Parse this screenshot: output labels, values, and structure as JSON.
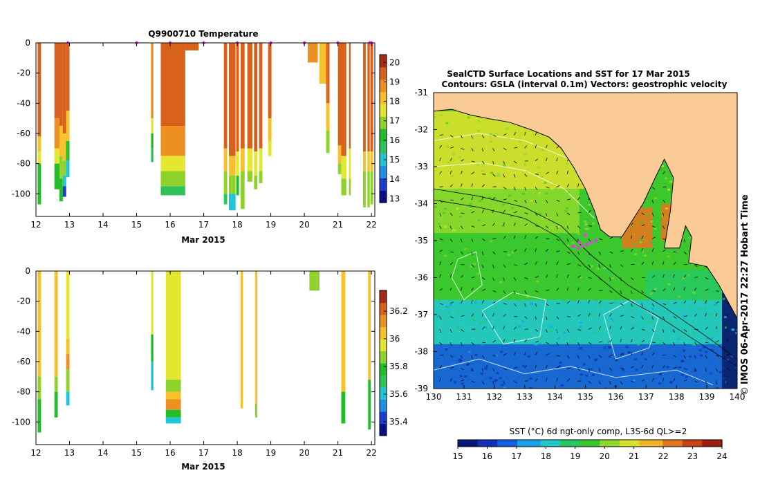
{
  "colors": {
    "land": "#fbcb96",
    "cbar_temp": [
      "#0a0f8a",
      "#1d3fd0",
      "#1f8fe6",
      "#22c4d6",
      "#2fc45a",
      "#22bd2a",
      "#8fd22c",
      "#e3e82e",
      "#f6c12a",
      "#ee8f22",
      "#d8621c",
      "#a62a14"
    ],
    "cbar_sal": [
      "#0a0f8a",
      "#1d3fd0",
      "#1f8fe6",
      "#22c4d6",
      "#2fc45a",
      "#22bd2a",
      "#8fd22c",
      "#e3e82e",
      "#f6c12a",
      "#ee8f22",
      "#d8621c",
      "#a62a14"
    ],
    "cbar_sst": [
      "#071878",
      "#1030b8",
      "#1560e0",
      "#1aa0e8",
      "#22c8c8",
      "#28c860",
      "#3cc82c",
      "#8cd82c",
      "#d8e02c",
      "#f0b42a",
      "#e07820",
      "#c84418",
      "#9a1e10"
    ],
    "marker": "#e040e0"
  },
  "chart_data": [
    {
      "name": "temperature_profiles",
      "type": "heatmap",
      "title": "Q9900710  Temperature",
      "xlabel": "Mar 2015",
      "xlim": [
        12,
        22.1
      ],
      "ylim": [
        -115,
        0
      ],
      "xticks": [
        "12",
        "13",
        "14",
        "15",
        "16",
        "17",
        "18",
        "19",
        "20",
        "21",
        "22"
      ],
      "yticks": [
        "0",
        "-20",
        "-40",
        "-60",
        "-80",
        "-100"
      ],
      "colorbar": {
        "min": 12.8,
        "max": 20.4,
        "ticks": [
          "13",
          "14",
          "15",
          "16",
          "17",
          "18",
          "19",
          "20"
        ]
      },
      "markers": [
        12.95,
        15.0,
        16.0,
        17.0,
        18.0,
        19.0,
        20.0,
        21.0,
        21.95,
        22.0
      ],
      "profiles": [
        {
          "x0": 12.05,
          "x1": 12.15,
          "max_depth": -107,
          "layers": [
            {
              "to": -62,
              "v": 19.6
            },
            {
              "to": -72,
              "v": 18.2
            },
            {
              "to": -80,
              "v": 17.4
            },
            {
              "to": -107,
              "v": 16.3
            }
          ]
        },
        {
          "x0": 12.55,
          "x1": 12.7,
          "max_depth": -97,
          "layers": [
            {
              "to": -50,
              "v": 19.4
            },
            {
              "to": -70,
              "v": 18.6
            },
            {
              "to": -80,
              "v": 17.8
            },
            {
              "to": -97,
              "v": 16.4
            }
          ]
        },
        {
          "x0": 12.7,
          "x1": 12.8,
          "max_depth": -105,
          "layers": [
            {
              "to": -55,
              "v": 19.3
            },
            {
              "to": -75,
              "v": 18.4
            },
            {
              "to": -90,
              "v": 17.2
            },
            {
              "to": -105,
              "v": 16.2
            }
          ]
        },
        {
          "x0": 12.8,
          "x1": 12.9,
          "max_depth": -102,
          "layers": [
            {
              "to": -60,
              "v": 19.2
            },
            {
              "to": -78,
              "v": 18.2
            },
            {
              "to": -88,
              "v": 16.8
            },
            {
              "to": -95,
              "v": 15.2
            },
            {
              "to": -102,
              "v": 14.0
            }
          ]
        },
        {
          "x0": 12.9,
          "x1": 13.0,
          "max_depth": -89,
          "layers": [
            {
              "to": -45,
              "v": 19.3
            },
            {
              "to": -65,
              "v": 18.3
            },
            {
              "to": -78,
              "v": 16.4
            },
            {
              "to": -89,
              "v": 14.8
            }
          ]
        },
        {
          "x0": 15.43,
          "x1": 15.5,
          "max_depth": -79,
          "layers": [
            {
              "to": -50,
              "v": 18.8
            },
            {
              "to": -60,
              "v": 17.6
            },
            {
              "to": -70,
              "v": 16.0
            },
            {
              "to": -79,
              "v": 15.4
            }
          ]
        },
        {
          "x0": 15.72,
          "x1": 16.45,
          "max_depth": -101,
          "layers": [
            {
              "to": -55,
              "v": 19.4
            },
            {
              "to": -75,
              "v": 18.6
            },
            {
              "to": -85,
              "v": 17.6
            },
            {
              "to": -95,
              "v": 16.8
            },
            {
              "to": -101,
              "v": 15.4
            }
          ]
        },
        {
          "x0": 16.45,
          "x1": 16.85,
          "max_depth": -5,
          "layers": [
            {
              "to": -5,
              "v": 19.4
            }
          ]
        },
        {
          "x0": 17.6,
          "x1": 17.7,
          "max_depth": -107,
          "layers": [
            {
              "to": -70,
              "v": 19.3
            },
            {
              "to": -85,
              "v": 18.0
            },
            {
              "to": -100,
              "v": 16.6
            },
            {
              "to": -107,
              "v": 15.4
            }
          ]
        },
        {
          "x0": 17.75,
          "x1": 17.95,
          "max_depth": -111,
          "layers": [
            {
              "to": -75,
              "v": 19.2
            },
            {
              "to": -88,
              "v": 17.9
            },
            {
              "to": -100,
              "v": 16.6
            },
            {
              "to": -111,
              "v": 15.2
            }
          ]
        },
        {
          "x0": 17.97,
          "x1": 18.05,
          "max_depth": -101,
          "layers": [
            {
              "to": -72,
              "v": 19.2
            },
            {
              "to": -88,
              "v": 17.8
            },
            {
              "to": -101,
              "v": 16.4
            }
          ]
        },
        {
          "x0": 18.1,
          "x1": 18.22,
          "max_depth": -110,
          "layers": [
            {
              "to": -70,
              "v": 19.3
            },
            {
              "to": -85,
              "v": 18.2
            },
            {
              "to": -110,
              "v": 16.8
            }
          ]
        },
        {
          "x0": 18.3,
          "x1": 18.45,
          "max_depth": -92,
          "layers": [
            {
              "to": -70,
              "v": 19.2
            },
            {
              "to": -85,
              "v": 17.6
            },
            {
              "to": -92,
              "v": 16.6
            }
          ]
        },
        {
          "x0": 18.5,
          "x1": 18.6,
          "max_depth": -97,
          "layers": [
            {
              "to": -72,
              "v": 19.2
            },
            {
              "to": -88,
              "v": 17.8
            },
            {
              "to": -97,
              "v": 16.6
            }
          ]
        },
        {
          "x0": 18.65,
          "x1": 18.75,
          "max_depth": -93,
          "layers": [
            {
              "to": -70,
              "v": 19.2
            },
            {
              "to": -85,
              "v": 17.8
            },
            {
              "to": -93,
              "v": 16.8
            }
          ]
        },
        {
          "x0": 18.92,
          "x1": 19.02,
          "max_depth": -75,
          "layers": [
            {
              "to": -50,
              "v": 19.4
            },
            {
              "to": -65,
              "v": 18.4
            },
            {
              "to": -75,
              "v": 17.6
            }
          ]
        },
        {
          "x0": 20.1,
          "x1": 20.4,
          "max_depth": -13,
          "layers": [
            {
              "to": -13,
              "v": 18.9
            }
          ]
        },
        {
          "x0": 20.45,
          "x1": 20.65,
          "max_depth": -27,
          "layers": [
            {
              "to": -27,
              "v": 18.3
            }
          ]
        },
        {
          "x0": 20.65,
          "x1": 20.75,
          "max_depth": -73,
          "layers": [
            {
              "to": -40,
              "v": 19.2
            },
            {
              "to": -58,
              "v": 18.3
            },
            {
              "to": -73,
              "v": 16.8
            }
          ]
        },
        {
          "x0": 21.0,
          "x1": 21.1,
          "max_depth": -87,
          "layers": [
            {
              "to": -68,
              "v": 19.3
            },
            {
              "to": -80,
              "v": 18.2
            },
            {
              "to": -87,
              "v": 16.8
            }
          ]
        },
        {
          "x0": 21.1,
          "x1": 21.25,
          "max_depth": -101,
          "layers": [
            {
              "to": -75,
              "v": 19.3
            },
            {
              "to": -90,
              "v": 17.8
            },
            {
              "to": -101,
              "v": 16.6
            }
          ]
        },
        {
          "x0": 21.33,
          "x1": 21.38,
          "max_depth": -101,
          "layers": [
            {
              "to": -70,
              "v": 19.3
            },
            {
              "to": -90,
              "v": 17.8
            },
            {
              "to": -101,
              "v": 16.6
            }
          ]
        },
        {
          "x0": 21.75,
          "x1": 21.83,
          "max_depth": -109,
          "layers": [
            {
              "to": -72,
              "v": 19.4
            },
            {
              "to": -85,
              "v": 17.9
            },
            {
              "to": -109,
              "v": 16.6
            }
          ]
        },
        {
          "x0": 21.88,
          "x1": 21.95,
          "max_depth": -109,
          "layers": [
            {
              "to": -72,
              "v": 19.4
            },
            {
              "to": -85,
              "v": 17.9
            },
            {
              "to": -109,
              "v": 16.6
            }
          ]
        },
        {
          "x0": 21.97,
          "x1": 22.05,
          "max_depth": -107,
          "layers": [
            {
              "to": -72,
              "v": 19.4
            },
            {
              "to": -85,
              "v": 17.9
            },
            {
              "to": -107,
              "v": 16.6
            }
          ]
        }
      ]
    },
    {
      "name": "salinity_profiles",
      "type": "heatmap",
      "title": "",
      "xlabel": "Mar 2015",
      "xlim": [
        12,
        22.1
      ],
      "ylim": [
        -115,
        0
      ],
      "xticks": [
        "12",
        "13",
        "14",
        "15",
        "16",
        "17",
        "18",
        "19",
        "20",
        "21",
        "22"
      ],
      "yticks": [
        "0",
        "-20",
        "-40",
        "-60",
        "-80",
        "-100"
      ],
      "colorbar": {
        "min": 35.3,
        "max": 36.35,
        "ticks": [
          "35.4",
          "35.6",
          "35.8",
          "36",
          "36.2"
        ]
      },
      "profiles": [
        {
          "x0": 12.05,
          "x1": 12.15,
          "max_depth": -107,
          "layers": [
            {
              "to": -70,
              "v": 36.05
            },
            {
              "to": -85,
              "v": 35.85
            },
            {
              "to": -107,
              "v": 35.8
            }
          ]
        },
        {
          "x0": 12.55,
          "x1": 12.65,
          "max_depth": -97,
          "layers": [
            {
              "to": -70,
              "v": 36.05
            },
            {
              "to": -80,
              "v": 35.85
            },
            {
              "to": -97,
              "v": 35.8
            }
          ]
        },
        {
          "x0": 12.9,
          "x1": 13.0,
          "max_depth": -89,
          "layers": [
            {
              "to": -45,
              "v": 35.98
            },
            {
              "to": -55,
              "v": 36.05
            },
            {
              "to": -65,
              "v": 36.15
            },
            {
              "to": -80,
              "v": 35.85
            },
            {
              "to": -89,
              "v": 35.6
            }
          ]
        },
        {
          "x0": 15.43,
          "x1": 15.5,
          "max_depth": -79,
          "layers": [
            {
              "to": -42,
              "v": 35.98
            },
            {
              "to": -60,
              "v": 35.8
            },
            {
              "to": -79,
              "v": 35.6
            }
          ]
        },
        {
          "x0": 15.87,
          "x1": 16.32,
          "max_depth": -101,
          "layers": [
            {
              "to": -72,
              "v": 35.97
            },
            {
              "to": -80,
              "v": 35.88
            },
            {
              "to": -85,
              "v": 36.0
            },
            {
              "to": -92,
              "v": 36.1
            },
            {
              "to": -97,
              "v": 35.8
            },
            {
              "to": -101,
              "v": 35.6
            }
          ]
        },
        {
          "x0": 18.1,
          "x1": 18.17,
          "max_depth": -91,
          "layers": [
            {
              "to": -91,
              "v": 36.05
            }
          ]
        },
        {
          "x0": 18.53,
          "x1": 18.6,
          "max_depth": -97,
          "layers": [
            {
              "to": -88,
              "v": 36.0
            },
            {
              "to": -97,
              "v": 35.85
            }
          ]
        },
        {
          "x0": 20.15,
          "x1": 20.45,
          "max_depth": -13,
          "layers": [
            {
              "to": -13,
              "v": 35.85
            }
          ]
        },
        {
          "x0": 21.1,
          "x1": 21.22,
          "max_depth": -101,
          "layers": [
            {
              "to": -80,
              "v": 36.0
            },
            {
              "to": -101,
              "v": 35.82
            }
          ]
        },
        {
          "x0": 21.9,
          "x1": 21.98,
          "max_depth": -105,
          "layers": [
            {
              "to": -72,
              "v": 36.02
            },
            {
              "to": -105,
              "v": 35.82
            }
          ]
        }
      ]
    },
    {
      "name": "sst_map",
      "type": "heatmap",
      "title": "SealCTD Surface Locations and SST for 17 Mar 2015",
      "subtitle": "Contours: GSLA (interval 0.1m) Vectors: geostrophic velocity",
      "xlim": [
        130,
        140
      ],
      "ylim": [
        -39,
        -31
      ],
      "xticks": [
        "130",
        "131",
        "132",
        "133",
        "134",
        "135",
        "136",
        "137",
        "138",
        "139",
        "140"
      ],
      "yticks": [
        "-31",
        "-32",
        "-33",
        "-34",
        "-35",
        "-36",
        "-37",
        "-38",
        "-39"
      ],
      "colorbar": {
        "label": "SST (°C) 6d ngt-only comp, L3S-6d QL>=2",
        "min": 15,
        "max": 24,
        "ticks": [
          "15",
          "16",
          "17",
          "18",
          "19",
          "20",
          "21",
          "22",
          "23",
          "24"
        ]
      },
      "sst_regions": [
        {
          "lon0": 130,
          "lon1": 136.5,
          "lat0": -33.6,
          "lat1": -31.5,
          "v": 20.6
        },
        {
          "lon0": 130,
          "lon1": 134.8,
          "lat0": -34.8,
          "lat1": -33.6,
          "v": 20.1
        },
        {
          "lon0": 130,
          "lon1": 137,
          "lat0": -36.6,
          "lat1": -34.8,
          "v": 19.4
        },
        {
          "lon0": 130,
          "lon1": 139.5,
          "lat0": -37.8,
          "lat1": -36.6,
          "v": 18.3
        },
        {
          "lon0": 130,
          "lon1": 139.5,
          "lat0": -39,
          "lat1": -37.8,
          "v": 16.5
        },
        {
          "lon0": 137,
          "lon1": 139.5,
          "lat0": -36.6,
          "lat1": -35.8,
          "v": 19.0
        },
        {
          "lon0": 139.5,
          "lon1": 140,
          "lat0": -39,
          "lat1": -36.4,
          "v": 15.6
        },
        {
          "lon0": 136.2,
          "lon1": 137.2,
          "lat0": -35.2,
          "lat1": -34.1,
          "v": 22.5
        },
        {
          "lon0": 137.5,
          "lon1": 138.2,
          "lat0": -35.0,
          "lat1": -34.0,
          "v": 22.0
        }
      ],
      "seal_locations": [
        {
          "lon": 134.6,
          "lat": -35.15
        },
        {
          "lon": 134.75,
          "lat": -35.2
        },
        {
          "lon": 134.9,
          "lat": -35.15
        },
        {
          "lon": 135.05,
          "lat": -35.1
        },
        {
          "lon": 135.2,
          "lat": -35.05
        },
        {
          "lon": 135.35,
          "lat": -35.0
        },
        {
          "lon": 135.0,
          "lat": -34.85
        },
        {
          "lon": 134.8,
          "lat": -35.05
        }
      ]
    }
  ],
  "timestamp": "IMOS 06-Apr-2017 22:27 Hobart Time",
  "copyright": "©"
}
